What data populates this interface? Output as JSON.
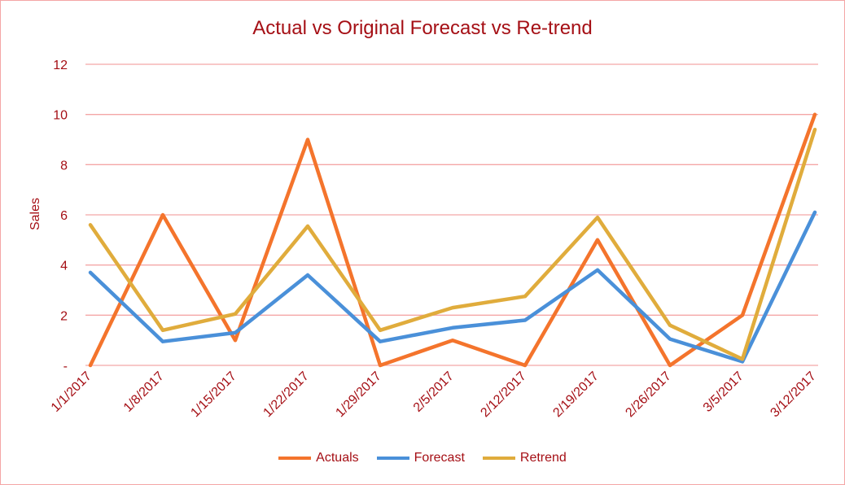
{
  "chart_data": {
    "type": "line",
    "title": "Actual vs  Original Forecast vs Re-trend",
    "ylabel": "Sales",
    "xlabel": "",
    "ylim": [
      0,
      12
    ],
    "yticks": [
      0,
      2,
      4,
      6,
      8,
      10,
      12
    ],
    "ytick_labels": [
      "-",
      "2",
      "4",
      "6",
      "8",
      "10",
      "12"
    ],
    "categories": [
      "1/1/2017",
      "1/8/2017",
      "1/15/2017",
      "1/22/2017",
      "1/29/2017",
      "2/5/2017",
      "2/12/2017",
      "2/19/2017",
      "2/26/2017",
      "3/5/2017",
      "3/12/2017"
    ],
    "series": [
      {
        "name": "Actuals",
        "color": "#f4742c",
        "values": [
          0,
          6,
          1,
          9,
          0,
          1,
          0,
          5,
          0,
          2,
          10
        ]
      },
      {
        "name": "Forecast",
        "color": "#4a90d9",
        "values": [
          3.7,
          0.95,
          1.3,
          3.6,
          0.95,
          1.5,
          1.8,
          3.8,
          1.05,
          0.15,
          6.1
        ]
      },
      {
        "name": "Retrend",
        "color": "#e0ac3c",
        "values": [
          5.6,
          1.4,
          2.05,
          5.55,
          1.4,
          2.3,
          2.75,
          5.9,
          1.6,
          0.25,
          9.4
        ]
      }
    ],
    "grid": true,
    "gridline_color": "#f4a6a6",
    "text_color": "#a50f15",
    "legend_position": "bottom"
  }
}
